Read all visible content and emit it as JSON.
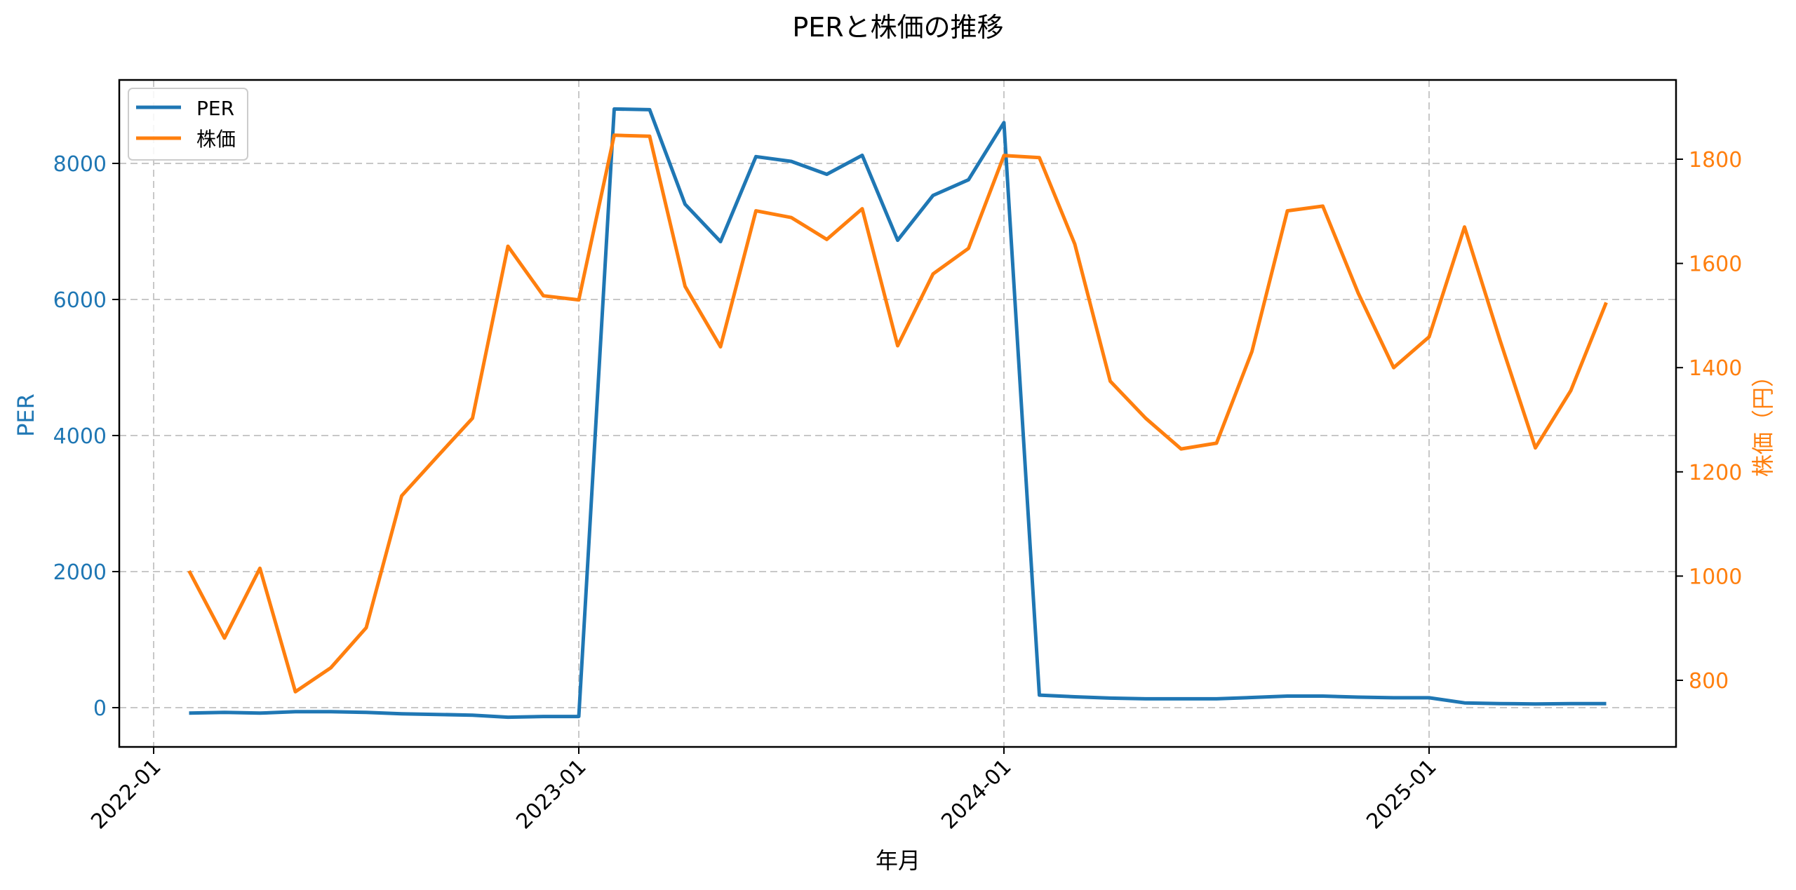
{
  "chart_data": {
    "type": "line",
    "title": "PERと株価の推移",
    "xlabel": "年月",
    "ylabel_left": "PER",
    "ylabel_right": "株価（円）",
    "x_ticks": [
      "2022-01",
      "2023-01",
      "2024-01",
      "2025-01"
    ],
    "y_left_ticks": [
      0,
      2000,
      4000,
      6000,
      8000
    ],
    "y_right_ticks": [
      800,
      1000,
      1200,
      1400,
      1600,
      1800
    ],
    "ylim_left": [
      -600,
      9250
    ],
    "ylim_right": [
      660,
      1950
    ],
    "grid": true,
    "legend_position": "upper left",
    "x": [
      "2022-02",
      "2022-03",
      "2022-04",
      "2022-05",
      "2022-06",
      "2022-07",
      "2022-08",
      "2022-09",
      "2022-10",
      "2022-11",
      "2022-12",
      "2023-01",
      "2023-02",
      "2023-03",
      "2023-04",
      "2023-05",
      "2023-06",
      "2023-07",
      "2023-08",
      "2023-09",
      "2023-10",
      "2023-11",
      "2023-12",
      "2024-01",
      "2024-02",
      "2024-03",
      "2024-04",
      "2024-05",
      "2024-06",
      "2024-07",
      "2024-08",
      "2024-09",
      "2024-10",
      "2024-11",
      "2024-12",
      "2025-01",
      "2025-02",
      "2025-03",
      "2025-04",
      "2025-05",
      "2025-06"
    ],
    "series": [
      {
        "name": "PER",
        "axis": "left",
        "color": "#1f77b4",
        "values": [
          -80,
          -70,
          -80,
          -60,
          -60,
          -70,
          -90,
          -100,
          -110,
          -140,
          -130,
          -130,
          8800,
          8790,
          7400,
          6850,
          8100,
          8030,
          7840,
          8120,
          6870,
          7530,
          7760,
          8600,
          185,
          160,
          140,
          130,
          130,
          130,
          150,
          170,
          170,
          155,
          145,
          145,
          70,
          60,
          55,
          60,
          60
        ]
      },
      {
        "name": "株価",
        "axis": "right",
        "color": "#ff7f0e",
        "values": [
          1010,
          881,
          1015,
          778,
          824,
          901,
          1154,
          1229,
          1303,
          1633,
          1538,
          1530,
          1846,
          1844,
          1556,
          1440,
          1701,
          1688,
          1646,
          1705,
          1442,
          1580,
          1629,
          1807,
          1803,
          1637,
          1374,
          1303,
          1244,
          1255,
          1431,
          1701,
          1710,
          1543,
          1400,
          1459,
          1670,
          1453,
          1246,
          1356,
          1525
        ]
      }
    ]
  },
  "legend": {
    "items": [
      {
        "label": "PER",
        "color": "#1f77b4"
      },
      {
        "label": "株価",
        "color": "#ff7f0e"
      }
    ]
  }
}
